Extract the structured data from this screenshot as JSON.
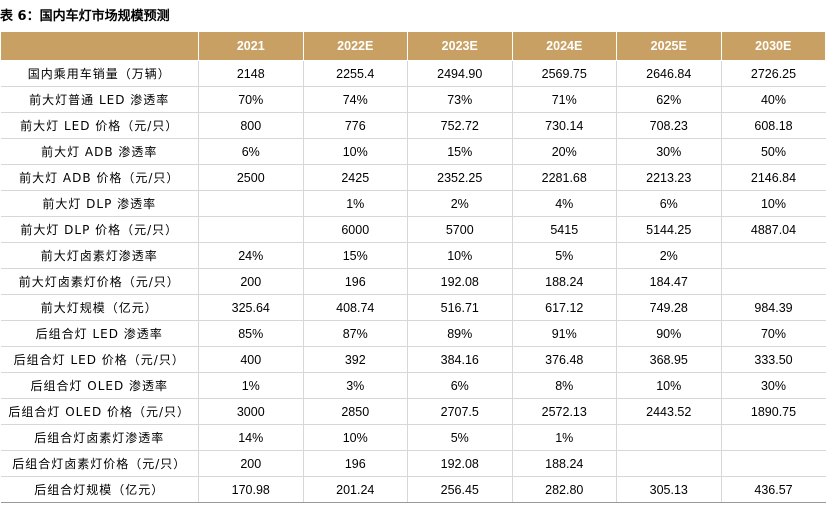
{
  "title": "表 6：国内车灯市场规模预测",
  "columns": [
    "2021",
    "2022E",
    "2023E",
    "2024E",
    "2025E",
    "2030E"
  ],
  "rows": [
    {
      "label": "国内乘用车销量（万辆）",
      "values": [
        "2148",
        "2255.4",
        "2494.90",
        "2569.75",
        "2646.84",
        "2726.25"
      ]
    },
    {
      "label": "前大灯普通 LED 渗透率",
      "values": [
        "70%",
        "74%",
        "73%",
        "71%",
        "62%",
        "40%"
      ]
    },
    {
      "label": "前大灯 LED 价格（元/只）",
      "values": [
        "800",
        "776",
        "752.72",
        "730.14",
        "708.23",
        "608.18"
      ]
    },
    {
      "label": "前大灯 ADB 渗透率",
      "values": [
        "6%",
        "10%",
        "15%",
        "20%",
        "30%",
        "50%"
      ]
    },
    {
      "label": "前大灯 ADB 价格（元/只）",
      "values": [
        "2500",
        "2425",
        "2352.25",
        "2281.68",
        "2213.23",
        "2146.84"
      ]
    },
    {
      "label": "前大灯 DLP 渗透率",
      "values": [
        "",
        "1%",
        "2%",
        "4%",
        "6%",
        "10%"
      ]
    },
    {
      "label": "前大灯 DLP 价格（元/只）",
      "values": [
        "",
        "6000",
        "5700",
        "5415",
        "5144.25",
        "4887.04"
      ]
    },
    {
      "label": "前大灯卤素灯渗透率",
      "values": [
        "24%",
        "15%",
        "10%",
        "5%",
        "2%",
        ""
      ]
    },
    {
      "label": "前大灯卤素灯价格（元/只）",
      "values": [
        "200",
        "196",
        "192.08",
        "188.24",
        "184.47",
        ""
      ]
    },
    {
      "label": "前大灯规模（亿元）",
      "values": [
        "325.64",
        "408.74",
        "516.71",
        "617.12",
        "749.28",
        "984.39"
      ]
    },
    {
      "label": "后组合灯 LED 渗透率",
      "values": [
        "85%",
        "87%",
        "89%",
        "91%",
        "90%",
        "70%"
      ]
    },
    {
      "label": "后组合灯 LED 价格（元/只）",
      "values": [
        "400",
        "392",
        "384.16",
        "376.48",
        "368.95",
        "333.50"
      ]
    },
    {
      "label": "后组合灯 OLED 渗透率",
      "values": [
        "1%",
        "3%",
        "6%",
        "8%",
        "10%",
        "30%"
      ]
    },
    {
      "label": "后组合灯 OLED 价格（元/只）",
      "values": [
        "3000",
        "2850",
        "2707.5",
        "2572.13",
        "2443.52",
        "1890.75"
      ]
    },
    {
      "label": "后组合灯卤素灯渗透率",
      "values": [
        "14%",
        "10%",
        "5%",
        "1%",
        "",
        ""
      ]
    },
    {
      "label": "后组合灯卤素灯价格（元/只）",
      "values": [
        "200",
        "196",
        "192.08",
        "188.24",
        "",
        ""
      ]
    },
    {
      "label": "后组合灯规模（亿元）",
      "values": [
        "170.98",
        "201.24",
        "256.45",
        "282.80",
        "305.13",
        "436.57"
      ]
    }
  ]
}
